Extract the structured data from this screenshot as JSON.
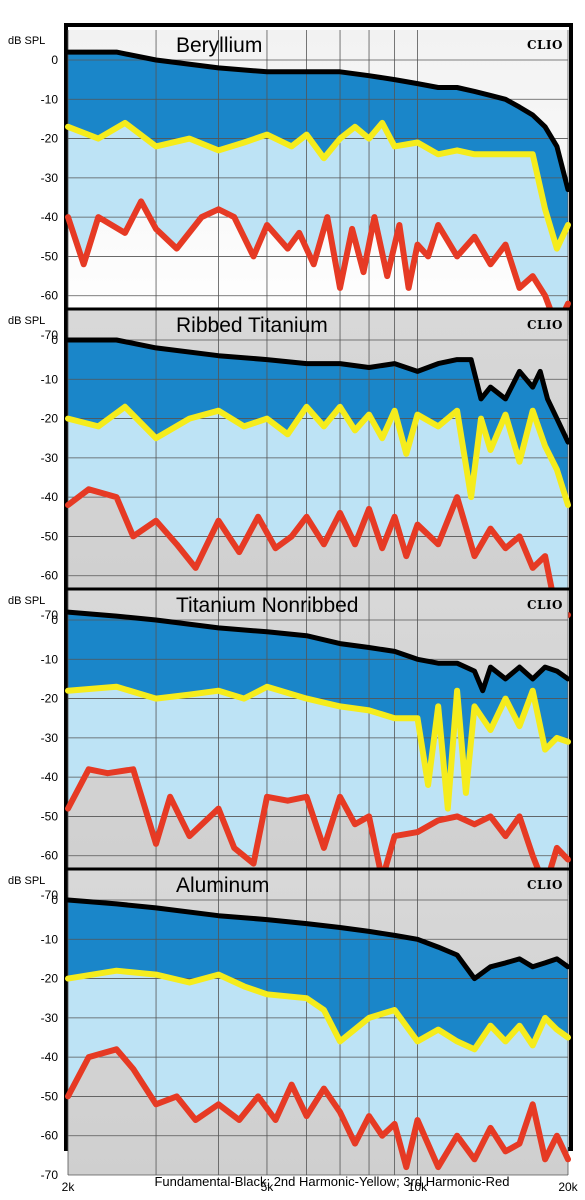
{
  "figure": {
    "y_unit_label": "dB SPL",
    "logo_text": "CLIO",
    "caption": "Fundamental-Black;  2nd Harmonic-Yellow; 3rd Harmonic-Red",
    "colors": {
      "fundamental": "#000000",
      "second_harmonic": "#f5ec1c",
      "third_harmonic": "#e63a24",
      "fill_dark_blue": "#1a86c9",
      "fill_light_blue": "#bde3f5",
      "fill_bottom_light": "#f2f2f2",
      "fill_bottom_gray": "#d8d8d8",
      "grid": "#555555"
    }
  },
  "chart_data": [
    {
      "type": "line",
      "title": "Beryllium",
      "ylabel": "dB SPL",
      "xscale": "log",
      "xlim": [
        2000,
        20000
      ],
      "ylim": [
        -70,
        0
      ],
      "x_ticks": [
        "2k",
        "5k",
        "10k",
        "20k"
      ],
      "y_ticks": [
        "0",
        "-10",
        "-20",
        "-30",
        "-40",
        "-50",
        "-60",
        "-70"
      ],
      "grid": true,
      "series": [
        {
          "name": "Fundamental",
          "color": "black",
          "x": [
            2000,
            2500,
            3000,
            4000,
            5000,
            6000,
            7000,
            8000,
            9000,
            10000,
            11000,
            12000,
            13000,
            14000,
            15000,
            16000,
            17000,
            18000,
            19000,
            20000
          ],
          "y": [
            2,
            2,
            0,
            -2,
            -3,
            -3,
            -3,
            -4,
            -5,
            -6,
            -7,
            -7,
            -8,
            -9,
            -10,
            -12,
            -14,
            -17,
            -22,
            -33
          ]
        },
        {
          "name": "2nd Harmonic",
          "color": "yellow",
          "x": [
            2000,
            2300,
            2600,
            3000,
            3500,
            4000,
            4500,
            5000,
            5600,
            6000,
            6500,
            7000,
            7500,
            8000,
            8500,
            9000,
            10000,
            11000,
            12000,
            13000,
            14000,
            15000,
            16000,
            17000,
            18000,
            19000,
            20000
          ],
          "y": [
            -17,
            -20,
            -16,
            -22,
            -20,
            -23,
            -21,
            -19,
            -22,
            -19,
            -25,
            -20,
            -17,
            -20,
            -16,
            -22,
            -21,
            -24,
            -23,
            -24,
            -24,
            -24,
            -24,
            -24,
            -38,
            -48,
            -42
          ]
        },
        {
          "name": "3rd Harmonic",
          "color": "red",
          "x": [
            2000,
            2150,
            2300,
            2600,
            2800,
            3000,
            3300,
            3700,
            4000,
            4300,
            4700,
            5000,
            5500,
            5800,
            6200,
            6600,
            7000,
            7400,
            7800,
            8200,
            8700,
            9200,
            9600,
            10000,
            10500,
            11000,
            12000,
            13000,
            14000,
            15000,
            16000,
            17000,
            18000,
            19000,
            20000
          ],
          "y": [
            -40,
            -52,
            -40,
            -44,
            -36,
            -43,
            -48,
            -40,
            -38,
            -40,
            -50,
            -42,
            -48,
            -44,
            -52,
            -40,
            -58,
            -43,
            -54,
            -40,
            -55,
            -42,
            -58,
            -47,
            -50,
            -42,
            -50,
            -45,
            -52,
            -47,
            -58,
            -55,
            -60,
            -68,
            -62
          ]
        }
      ]
    },
    {
      "type": "line",
      "title": "Ribbed Titanium",
      "ylabel": "dB SPL",
      "xscale": "log",
      "xlim": [
        2000,
        20000
      ],
      "ylim": [
        -70,
        0
      ],
      "x_ticks": [
        "2k",
        "5k",
        "10k",
        "20k"
      ],
      "y_ticks": [
        "0",
        "-10",
        "-20",
        "-30",
        "-40",
        "-50",
        "-60",
        "-70"
      ],
      "grid": true,
      "series": [
        {
          "name": "Fundamental",
          "color": "black",
          "x": [
            2000,
            2500,
            3000,
            4000,
            5000,
            6000,
            7000,
            8000,
            9000,
            10000,
            11000,
            12000,
            12800,
            13400,
            14000,
            15000,
            16000,
            17000,
            17600,
            18200,
            19000,
            20000
          ],
          "y": [
            0,
            0,
            -2,
            -4,
            -5,
            -6,
            -6,
            -7,
            -6,
            -8,
            -6,
            -5,
            -5,
            -15,
            -12,
            -15,
            -8,
            -12,
            -8,
            -15,
            -20,
            -26
          ]
        },
        {
          "name": "2nd Harmonic",
          "color": "yellow",
          "x": [
            2000,
            2300,
            2600,
            3000,
            3500,
            4000,
            4500,
            5000,
            5500,
            6000,
            6500,
            7000,
            7500,
            8000,
            8500,
            9000,
            9500,
            10000,
            11000,
            12000,
            12800,
            13400,
            14000,
            15000,
            16000,
            17000,
            18000,
            19000,
            20000
          ],
          "y": [
            -20,
            -22,
            -17,
            -25,
            -20,
            -18,
            -22,
            -20,
            -24,
            -17,
            -22,
            -17,
            -23,
            -19,
            -25,
            -18,
            -29,
            -19,
            -22,
            -18,
            -40,
            -20,
            -28,
            -19,
            -31,
            -18,
            -27,
            -33,
            -42
          ]
        },
        {
          "name": "3rd Harmonic",
          "color": "red",
          "x": [
            2000,
            2200,
            2500,
            2700,
            3000,
            3300,
            3600,
            4000,
            4400,
            4800,
            5200,
            5600,
            6000,
            6500,
            7000,
            7500,
            8000,
            8500,
            9000,
            9500,
            10000,
            11000,
            12000,
            13000,
            14000,
            15000,
            16000,
            17000,
            18000,
            19000,
            20000
          ],
          "y": [
            -42,
            -38,
            -40,
            -50,
            -46,
            -52,
            -58,
            -46,
            -54,
            -45,
            -53,
            -50,
            -45,
            -52,
            -44,
            -52,
            -43,
            -53,
            -45,
            -55,
            -47,
            -52,
            -40,
            -55,
            -48,
            -53,
            -50,
            -58,
            -55,
            -70,
            -70
          ]
        }
      ]
    },
    {
      "type": "line",
      "title": "Titanium Nonribbed",
      "ylabel": "dB SPL",
      "xscale": "log",
      "xlim": [
        2000,
        20000
      ],
      "ylim": [
        -70,
        0
      ],
      "x_ticks": [
        "2k",
        "5k",
        "10k",
        "20k"
      ],
      "y_ticks": [
        "0",
        "-10",
        "-20",
        "-30",
        "-40",
        "-50",
        "-60",
        "-70"
      ],
      "grid": true,
      "series": [
        {
          "name": "Fundamental",
          "color": "black",
          "x": [
            2000,
            2500,
            3000,
            4000,
            5000,
            6000,
            7000,
            8000,
            9000,
            10000,
            11000,
            12000,
            13000,
            13500,
            14000,
            15000,
            16000,
            17000,
            18000,
            19000,
            20000
          ],
          "y": [
            2,
            1,
            0,
            -2,
            -3,
            -4,
            -6,
            -7,
            -8,
            -10,
            -11,
            -11,
            -13,
            -18,
            -12,
            -15,
            -12,
            -15,
            -12,
            -13,
            -15
          ]
        },
        {
          "name": "2nd Harmonic",
          "color": "yellow",
          "x": [
            2000,
            2500,
            3000,
            3500,
            4000,
            4500,
            5000,
            6000,
            7000,
            8000,
            9000,
            10000,
            10500,
            11000,
            11500,
            12000,
            12500,
            13000,
            14000,
            15000,
            16000,
            17000,
            18000,
            19000,
            20000
          ],
          "y": [
            -18,
            -17,
            -20,
            -19,
            -18,
            -20,
            -17,
            -20,
            -22,
            -23,
            -25,
            -25,
            -42,
            -22,
            -48,
            -18,
            -44,
            -22,
            -28,
            -20,
            -27,
            -18,
            -33,
            -30,
            -31
          ]
        },
        {
          "name": "3rd Harmonic",
          "color": "red",
          "x": [
            2000,
            2200,
            2400,
            2700,
            3000,
            3200,
            3500,
            4000,
            4300,
            4700,
            5000,
            5500,
            6000,
            6500,
            7000,
            7500,
            8000,
            8500,
            9000,
            10000,
            11000,
            12000,
            13000,
            14000,
            15000,
            16000,
            17000,
            18000,
            19000,
            20000
          ],
          "y": [
            -48,
            -38,
            -39,
            -38,
            -57,
            -45,
            -55,
            -48,
            -58,
            -62,
            -45,
            -46,
            -45,
            -58,
            -45,
            -52,
            -50,
            -66,
            -55,
            -54,
            -51,
            -50,
            -52,
            -50,
            -55,
            -50,
            -60,
            -68,
            -58,
            -61
          ]
        }
      ]
    },
    {
      "type": "line",
      "title": "Aluminum",
      "ylabel": "dB SPL",
      "xscale": "log",
      "xlim": [
        2000,
        20000
      ],
      "ylim": [
        -70,
        0
      ],
      "x_ticks": [
        "2k",
        "5k",
        "10k",
        "20k"
      ],
      "y_ticks": [
        "0",
        "-10",
        "-20",
        "-30",
        "-40",
        "-50",
        "-60",
        "-70"
      ],
      "grid": true,
      "series": [
        {
          "name": "Fundamental",
          "color": "black",
          "x": [
            2000,
            2500,
            3000,
            4000,
            5000,
            6000,
            7000,
            8000,
            9000,
            10000,
            11000,
            12000,
            13000,
            14000,
            15000,
            16000,
            17000,
            18000,
            19000,
            20000
          ],
          "y": [
            0,
            -1,
            -2,
            -4,
            -5,
            -6,
            -7,
            -8,
            -9,
            -10,
            -12,
            -14,
            -20,
            -17,
            -16,
            -15,
            -17,
            -16,
            -15,
            -17
          ]
        },
        {
          "name": "2nd Harmonic",
          "color": "yellow",
          "x": [
            2000,
            2500,
            3000,
            3500,
            4000,
            4500,
            5000,
            6000,
            6500,
            7000,
            8000,
            9000,
            10000,
            11000,
            12000,
            13000,
            14000,
            15000,
            16000,
            17000,
            18000,
            19000,
            20000
          ],
          "y": [
            -20,
            -18,
            -19,
            -21,
            -19,
            -22,
            -24,
            -25,
            -28,
            -36,
            -30,
            -28,
            -36,
            -33,
            -36,
            -38,
            -32,
            -36,
            -32,
            -37,
            -30,
            -33,
            -35
          ]
        },
        {
          "name": "3rd Harmonic",
          "color": "red",
          "x": [
            2000,
            2200,
            2500,
            2700,
            3000,
            3300,
            3600,
            4000,
            4400,
            4800,
            5200,
            5600,
            6000,
            6500,
            7000,
            7500,
            8000,
            8500,
            9000,
            9500,
            10000,
            11000,
            12000,
            13000,
            14000,
            15000,
            16000,
            17000,
            18000,
            19000,
            20000
          ],
          "y": [
            -50,
            -40,
            -38,
            -43,
            -52,
            -50,
            -56,
            -52,
            -56,
            -50,
            -56,
            -47,
            -55,
            -48,
            -54,
            -62,
            -55,
            -60,
            -57,
            -68,
            -56,
            -68,
            -60,
            -66,
            -58,
            -64,
            -62,
            -52,
            -66,
            -60,
            -66
          ]
        }
      ]
    }
  ]
}
